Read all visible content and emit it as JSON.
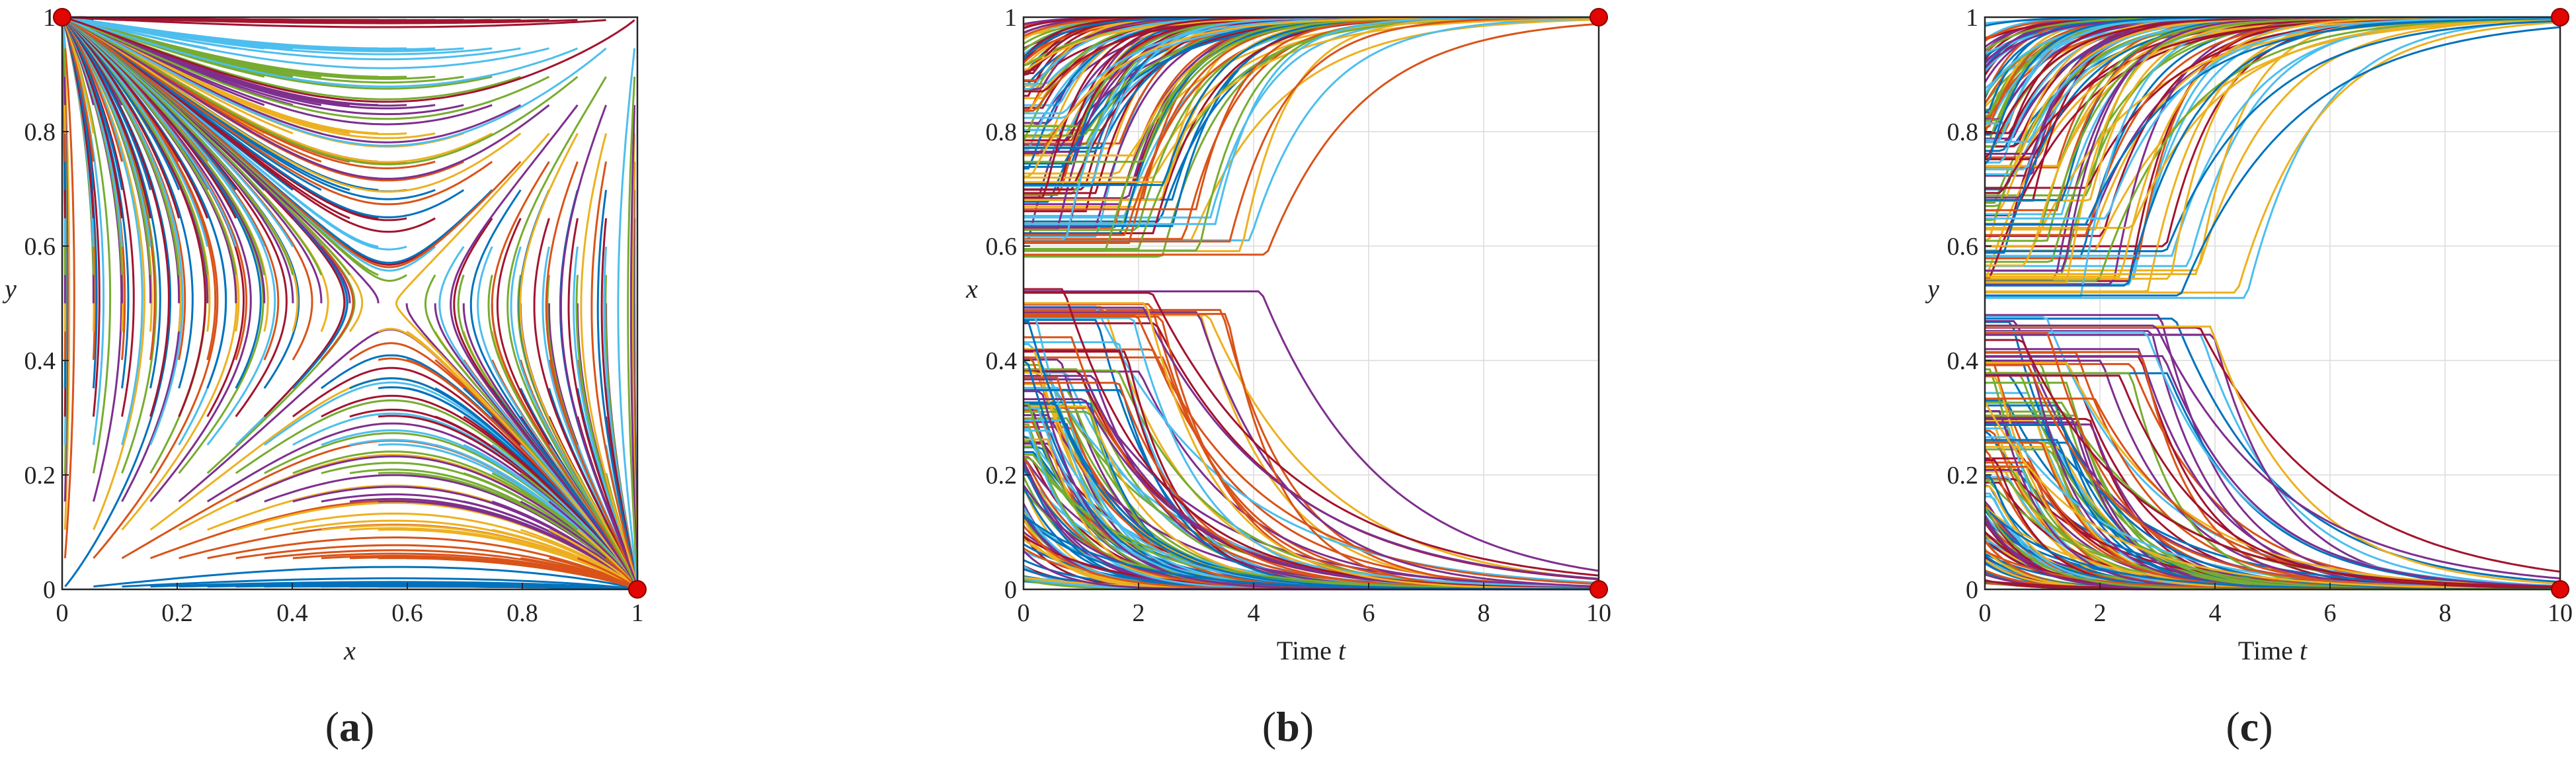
{
  "chart_data": [
    {
      "panel": "a",
      "type": "line",
      "title": "",
      "xlabel": "x",
      "ylabel": "y",
      "xlim": [
        0,
        1
      ],
      "ylim": [
        0,
        1
      ],
      "xticks": [
        "0",
        "0.2",
        "0.4",
        "0.6",
        "0.8",
        "1"
      ],
      "yticks": [
        "0",
        "0.2",
        "0.4",
        "0.6",
        "0.8",
        "1"
      ],
      "grid": false,
      "description": "phase portrait of (x, y) trajectories from many initial points",
      "saddle_point": [
        0.57,
        0.5
      ],
      "stable_points": [
        [
          0,
          1
        ],
        [
          1,
          0
        ]
      ],
      "caption_prefix": "(",
      "caption_letter": "a",
      "caption_suffix": ")"
    },
    {
      "panel": "b",
      "type": "line",
      "title": "",
      "xlabel_text": "Time ",
      "xlabel_var": "t",
      "ylabel": "x",
      "xlim": [
        0,
        10
      ],
      "ylim": [
        0,
        1
      ],
      "xticks": [
        "0",
        "2",
        "4",
        "6",
        "8",
        "10"
      ],
      "yticks": [
        "0",
        "0.2",
        "0.4",
        "0.6",
        "0.8",
        "1"
      ],
      "grid": true,
      "description": "x(t) over time from many initial conditions, splitting near x = 0.57",
      "threshold": 0.57,
      "stable_points": [
        [
          10,
          1
        ],
        [
          10,
          0
        ]
      ],
      "caption_prefix": "(",
      "caption_letter": "b",
      "caption_suffix": ")"
    },
    {
      "panel": "c",
      "type": "line",
      "title": "",
      "xlabel_text": "Time ",
      "xlabel_var": "t",
      "ylabel": "y",
      "xlim": [
        0,
        10
      ],
      "ylim": [
        0,
        1
      ],
      "xticks": [
        "0",
        "2",
        "4",
        "6",
        "8",
        "10"
      ],
      "yticks": [
        "0",
        "0.2",
        "0.4",
        "0.6",
        "0.8",
        "1"
      ],
      "grid": true,
      "description": "y(t) over time from many initial conditions, splitting near y = 0.5",
      "threshold": 0.5,
      "stable_points": [
        [
          10,
          1
        ],
        [
          10,
          0
        ]
      ],
      "caption_prefix": "(",
      "caption_letter": "c",
      "caption_suffix": ")"
    }
  ],
  "colors": {
    "palette": [
      "#0072BD",
      "#D95319",
      "#EDB120",
      "#7E2F8E",
      "#77AC30",
      "#4DBEEE",
      "#A2142F"
    ],
    "marker": "#e10600",
    "marker_edge": "#8a0000",
    "axis": "#262626",
    "grid": "#dcdcdc"
  }
}
